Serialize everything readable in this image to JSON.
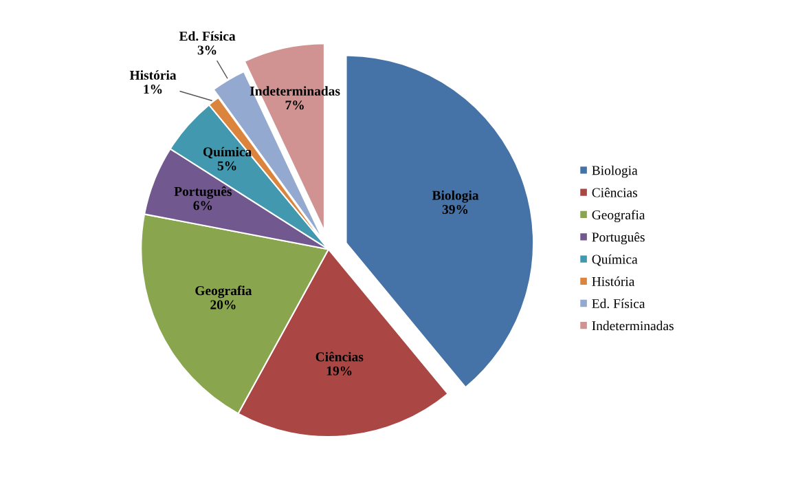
{
  "chart_data": {
    "type": "pie",
    "categories": [
      "Biologia",
      "Ciências",
      "Geografia",
      "Português",
      "Química",
      "História",
      "Ed. Física",
      "Indeterminadas"
    ],
    "values": [
      39,
      19,
      20,
      6,
      5,
      1,
      3,
      7
    ],
    "colors": [
      "#4572a7",
      "#aa4643",
      "#89a54e",
      "#71588f",
      "#4198af",
      "#db843d",
      "#93a9cf",
      "#d19392"
    ],
    "value_labels": [
      "39%",
      "19%",
      "20%",
      "6%",
      "5%",
      "1%",
      "3%",
      "7%"
    ],
    "legend": "right"
  }
}
